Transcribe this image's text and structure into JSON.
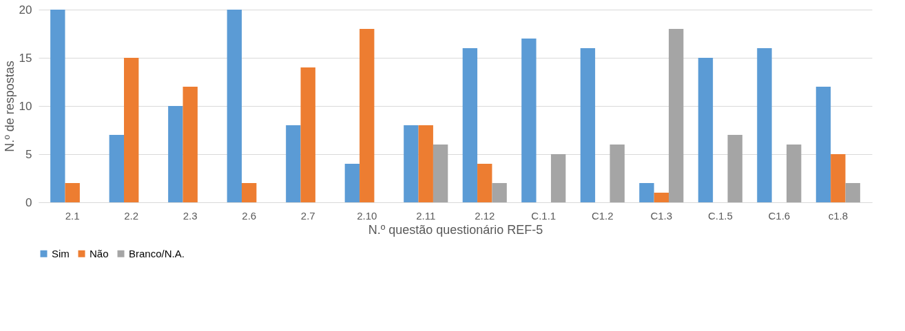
{
  "chart_data": {
    "type": "bar",
    "xlabel": "N.º questão questionário REF-5",
    "ylabel": "N.º de respostas",
    "categories": [
      "2.1",
      "2.2",
      "2.3",
      "2.6",
      "2.7",
      "2.10",
      "2.11",
      "2.12",
      "C.1.1",
      "C1.2",
      "C1.3",
      "C.1.5",
      "C1.6",
      "c1.8"
    ],
    "series": [
      {
        "name": "Sim",
        "color": "#5b9bd5",
        "values": [
          20,
          7,
          10,
          20,
          8,
          4,
          8,
          16,
          17,
          16,
          2,
          15,
          16,
          12
        ]
      },
      {
        "name": "Não",
        "color": "#ed7d31",
        "values": [
          2,
          15,
          12,
          2,
          14,
          18,
          8,
          4,
          0,
          0,
          1,
          0,
          0,
          5
        ]
      },
      {
        "name": "Branco/N.A.",
        "color": "#a5a5a5",
        "values": [
          0,
          0,
          0,
          0,
          0,
          0,
          6,
          2,
          5,
          6,
          18,
          7,
          6,
          2
        ]
      }
    ],
    "ylim": [
      0,
      20
    ],
    "yticks": [
      0,
      5,
      10,
      15,
      20
    ],
    "grid": "y",
    "legend": "bottom"
  }
}
